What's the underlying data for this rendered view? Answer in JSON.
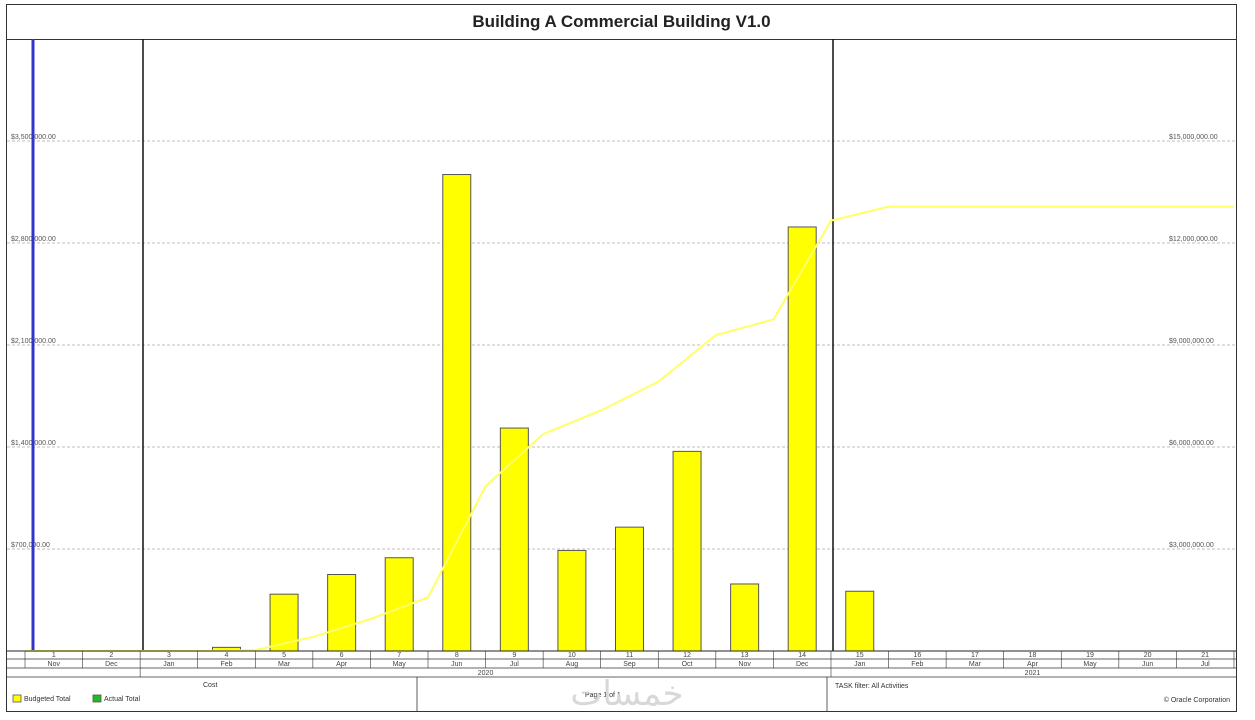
{
  "chart_data": {
    "type": "bar",
    "title": "Building A Commercial Building V1.0",
    "periods": [
      "1",
      "2",
      "3",
      "4",
      "5",
      "6",
      "7",
      "8",
      "9",
      "10",
      "11",
      "12",
      "13",
      "14",
      "15",
      "16",
      "17",
      "18",
      "19",
      "20",
      "21"
    ],
    "months": [
      "Nov",
      "Dec",
      "Jan",
      "Feb",
      "Mar",
      "Apr",
      "May",
      "Jun",
      "Jul",
      "Aug",
      "Sep",
      "Oct",
      "Nov",
      "Dec",
      "Jan",
      "Feb",
      "Mar",
      "Apr",
      "May",
      "Jun",
      "Jul"
    ],
    "years": [
      {
        "label": "2020",
        "start": 2,
        "end": 13
      },
      {
        "label": "2021",
        "start": 14,
        "end": 20
      }
    ],
    "left_axis": {
      "ticks": [
        "$700,000.00",
        "$1,400,000.00",
        "$2,100,000.00",
        "$2,800,000.00",
        "$3,500,000.00"
      ],
      "tick_values": [
        700000,
        1400000,
        2100000,
        2800000,
        3500000
      ],
      "ylim": [
        0,
        4200000
      ]
    },
    "right_axis": {
      "ticks": [
        "$3,000,000.00",
        "$6,000,000.00",
        "$9,000,000.00",
        "$12,000,000.00",
        "$15,000,000.00"
      ],
      "tick_values": [
        3000000,
        6000000,
        9000000,
        12000000,
        15000000
      ],
      "ylim": [
        0,
        18000000
      ]
    },
    "series": [
      {
        "name": "Budgeted Total",
        "type": "bar",
        "axis": "left",
        "color": "#ffff00",
        "values": [
          0,
          0,
          0,
          25000,
          390000,
          525000,
          640000,
          3270000,
          1530000,
          690000,
          850000,
          1370000,
          460000,
          2910000,
          410000,
          0,
          0,
          0,
          0,
          0,
          0
        ]
      },
      {
        "name": "Budgeted Total (cumulative)",
        "type": "line",
        "axis": "right",
        "color": "#ffff66",
        "values": [
          0,
          0,
          0,
          25000,
          415000,
          940000,
          1580000,
          4850000,
          6380000,
          7070000,
          7920000,
          9290000,
          9750000,
          12660000,
          13070000,
          13070000,
          13070000,
          13070000,
          13070000,
          13070000,
          13070000
        ]
      },
      {
        "name": "Actual Total",
        "type": "bar",
        "axis": "left",
        "color": "#22bb22",
        "values": []
      }
    ],
    "grid": true,
    "legend_position": "bottom-left"
  },
  "footer": {
    "cost_label": "Cost",
    "page_label": "Page 1 of 1",
    "filter_label": "TASK filter: All Activities",
    "copyright": "© Oracle Corporation"
  },
  "colors": {
    "bar": "#ffff00",
    "bar_stroke": "#555555",
    "line": "#ffff66",
    "data_date": "#3333cc",
    "grid": "#aaaaaa"
  },
  "watermark": "خمسات"
}
